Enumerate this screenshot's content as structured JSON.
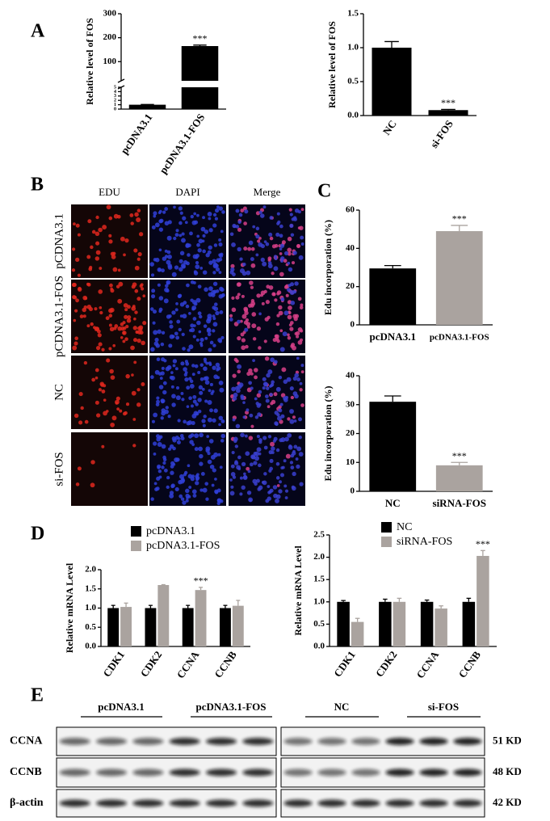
{
  "panel_labels": [
    "A",
    "B",
    "C",
    "D",
    "E"
  ],
  "chart_data": [
    {
      "type": "broken_bar",
      "ylabel": "Relative level of FOS",
      "categories": [
        "pcDNA3.1",
        "pcDNA3.1-FOS"
      ],
      "values": [
        1,
        165
      ],
      "errors": [
        0.05,
        4
      ],
      "colors": [
        "#000000",
        "#000000"
      ],
      "value_annotations": [
        null,
        "***"
      ],
      "ylim_lower": [
        0,
        5
      ],
      "ylim_upper": [
        20,
        300
      ],
      "yticks": [
        0,
        1,
        2,
        3,
        4,
        5,
        100,
        200,
        300
      ]
    },
    {
      "type": "bar",
      "ylabel": "Relative level of FOS",
      "categories": [
        "NC",
        "si-FOS"
      ],
      "values": [
        1.0,
        0.08
      ],
      "errors": [
        0.09,
        0.01
      ],
      "colors": [
        "#000000",
        "#000000"
      ],
      "value_annotations": [
        null,
        "***"
      ],
      "ylim": [
        0,
        1.5
      ],
      "yticks": [
        {
          "value": 0,
          "label": "0.0"
        },
        {
          "value": 0.5,
          "label": "0.5"
        },
        {
          "value": 1,
          "label": "1.0"
        },
        {
          "value": 1.5,
          "label": "1.5"
        }
      ]
    },
    {
      "type": "bar",
      "ylabel": "Edu incorporation (%)",
      "categories": [
        "pcDNA3.1",
        "pcDNA3.1-FOS"
      ],
      "values": [
        29.5,
        49
      ],
      "errors": [
        1.5,
        3
      ],
      "colors": [
        "#000000",
        "#aaa39f"
      ],
      "value_annotations": [
        null,
        "***"
      ],
      "ylim": [
        0,
        60
      ],
      "yticks": [
        0,
        20,
        40,
        60
      ]
    },
    {
      "type": "bar",
      "ylabel": "Edu incorporation (%)",
      "categories": [
        "NC",
        "siRNA-FOS"
      ],
      "values": [
        31,
        9
      ],
      "errors": [
        2,
        1
      ],
      "colors": [
        "#000000",
        "#aaa39f"
      ],
      "value_annotations": [
        null,
        "***"
      ],
      "ylim": [
        0,
        40
      ],
      "yticks": [
        0,
        10,
        20,
        30,
        40
      ]
    },
    {
      "type": "grouped_bar",
      "ylabel": "Relative mRNA Level",
      "categories": [
        "CDK1",
        "CDK2",
        "CCNA",
        "CCNB"
      ],
      "series": [
        {
          "name": "pcDNA3.1",
          "color": "#000000",
          "values": [
            1.0,
            1.0,
            1.0,
            1.0
          ],
          "errors": [
            0.07,
            0.07,
            0.07,
            0.07
          ],
          "value_annotations": [
            null,
            null,
            null,
            null
          ]
        },
        {
          "name": "pcDNA3.1-FOS",
          "color": "#aaa39f",
          "values": [
            1.03,
            1.6,
            1.47,
            1.06
          ],
          "errors": [
            0.1,
            0.01,
            0.07,
            0.14
          ],
          "value_annotations": [
            null,
            null,
            "***",
            null
          ]
        }
      ],
      "ylim": [
        0,
        2.0
      ],
      "yticks": [
        {
          "value": 0,
          "label": "0.0"
        },
        {
          "value": 0.5,
          "label": "0.5"
        },
        {
          "value": 1,
          "label": "1.0"
        },
        {
          "value": 1.5,
          "label": "1.5"
        },
        {
          "value": 2,
          "label": "2.0"
        }
      ]
    },
    {
      "type": "grouped_bar",
      "ylabel": "Relative mRNA Level",
      "categories": [
        "CDK1",
        "CDK2",
        "CCNA",
        "CCNB"
      ],
      "series": [
        {
          "name": "NC",
          "color": "#000000",
          "values": [
            1.0,
            1.0,
            1.0,
            1.0
          ],
          "errors": [
            0.03,
            0.06,
            0.04,
            0.08
          ],
          "value_annotations": [
            null,
            null,
            null,
            null
          ]
        },
        {
          "name": "siRNA-FOS",
          "color": "#aaa39f",
          "values": [
            0.55,
            1.0,
            0.85,
            2.03
          ],
          "errors": [
            0.08,
            0.08,
            0.06,
            0.12
          ],
          "value_annotations": [
            null,
            null,
            null,
            "***"
          ]
        }
      ],
      "ylim": [
        0,
        2.5
      ],
      "yticks": [
        {
          "value": 0,
          "label": "0.0"
        },
        {
          "value": 0.5,
          "label": "0.5"
        },
        {
          "value": 1,
          "label": "1.0"
        },
        {
          "value": 1.5,
          "label": "1.5"
        },
        {
          "value": 2,
          "label": "2.0"
        },
        {
          "value": 2.5,
          "label": "2.5"
        }
      ]
    }
  ],
  "microscopy": {
    "columns": [
      "EDU",
      "DAPI",
      "Merge"
    ],
    "rows": [
      "pCDNA3.1",
      "pCDNA3.1-FOS",
      "NC",
      "si-FOS"
    ]
  },
  "western_blot": {
    "groups": [
      "pcDNA3.1",
      "pcDNA3.1-FOS",
      "NC",
      "si-FOS"
    ],
    "rows": [
      {
        "name": "CCNA",
        "size": "51 KD"
      },
      {
        "name": "CCNB",
        "size": "48 KD"
      },
      {
        "name": "β-actin",
        "size": "42 KD"
      }
    ]
  }
}
